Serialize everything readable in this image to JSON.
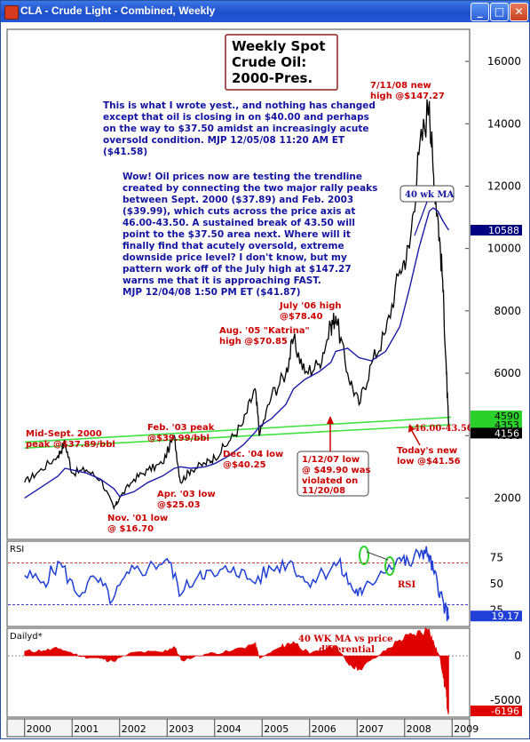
{
  "window": {
    "title": "CLA - Crude Light - Combined, Weekly",
    "buttons": [
      "minimize",
      "maximize",
      "close"
    ]
  },
  "colors": {
    "price": "#000000",
    "ma": "#1c1ca8",
    "trendline": "#3fe23f",
    "rsi": "#1f3fd6",
    "diff": "#e00000",
    "annotation_red": "#cc0000",
    "annotation_blue": "#1414a0"
  },
  "chart_data": [
    {
      "type": "line",
      "panel": "price",
      "title": "Weekly Spot Crude Oil: 2000-Pres.",
      "x_label_years": [
        "2000",
        "2001",
        "2002",
        "2003",
        "2004",
        "2005",
        "2006",
        "2007",
        "2008",
        "2009"
      ],
      "yticks": [
        "2000",
        "4000",
        "6000",
        "8000",
        "10000",
        "12000",
        "14000",
        "16000"
      ],
      "ylim": [
        700,
        17000
      ],
      "x": [
        2000.0,
        2000.3,
        2000.7,
        2000.85,
        2001.0,
        2001.3,
        2001.6,
        2001.88,
        2002.0,
        2002.3,
        2002.6,
        2002.9,
        2003.15,
        2003.28,
        2003.5,
        2003.8,
        2004.0,
        2004.3,
        2004.6,
        2004.85,
        2004.95,
        2005.2,
        2005.5,
        2005.66,
        2005.9,
        2006.2,
        2006.45,
        2006.55,
        2006.8,
        2007.04,
        2007.3,
        2007.6,
        2007.9,
        2008.1,
        2008.3,
        2008.52,
        2008.6,
        2008.7,
        2008.8,
        2008.88,
        2008.93
      ],
      "series": [
        {
          "name": "Price",
          "values": [
            2500,
            2850,
            3350,
            3789,
            2800,
            2900,
            2600,
            1670,
            2000,
            2600,
            2900,
            3100,
            3999,
            2503,
            2900,
            3100,
            3300,
            3800,
            4400,
            5500,
            4025,
            5300,
            6000,
            7085,
            6000,
            6300,
            7500,
            7840,
            6000,
            4990,
            6300,
            7300,
            9300,
            10000,
            13000,
            14727,
            12500,
            11000,
            9000,
            6000,
            4156
          ]
        },
        {
          "name": "40 wk MA",
          "values": [
            2000,
            2300,
            2700,
            2950,
            2900,
            2800,
            2600,
            2300,
            2050,
            2200,
            2500,
            2700,
            2950,
            3000,
            2950,
            3000,
            3100,
            3350,
            3700,
            4100,
            4300,
            4550,
            5000,
            5500,
            5800,
            6050,
            6350,
            6700,
            6800,
            6500,
            6400,
            6700,
            7500,
            8700,
            10000,
            11200,
            11300,
            11200,
            10900,
            10700,
            10588
          ]
        }
      ],
      "trendlines": [
        {
          "x": [
            2000.0,
            2008.98
          ],
          "y": [
            3789,
            4590
          ]
        },
        {
          "x": [
            2000.0,
            2008.98
          ],
          "y": [
            3600,
            4350
          ]
        }
      ],
      "axis_badges": [
        "10588",
        "4590",
        "4353",
        "4156"
      ],
      "trendline_label": "46.00-43.50",
      "title_box": [
        "Weekly Spot",
        "Crude Oil:",
        "2000-Pres."
      ],
      "commentary_1": [
        "This is what I wrote yest., and nothing has changed",
        "except that oil is closing in on $40.00 and perhaps",
        "on the way to $37.50 amidst an increasingly acute",
        "oversold condition. MJP 12/05/08 11:20 AM ET",
        "($41.58)"
      ],
      "commentary_2": [
        "Wow! Oil prices now are testing the trendline",
        "created by connecting the two major rally peaks",
        "between Sept. 2000 ($37.89) and Feb. 2003",
        "($39.99), which cuts across the price axis at",
        "46.00-43.50. A sustained break of 43.50 will",
        "point to the $37.50 area next. Where will it",
        "finally find that acutely oversold, extreme",
        "downside price level? I don't know, but my",
        "pattern work off of the July high at $147.27",
        "warns me that it is approaching FAST.",
        "MJP 12/04/08 1:50 PM ET ($41.87)"
      ],
      "annotations": {
        "high_0708": [
          "7/11/08 new",
          "high @$147.27"
        ],
        "ma_label": "40 wk MA",
        "july06": [
          "July '06 high",
          "@$78.40"
        ],
        "aug05": [
          "Aug. '05 \"Katrina\"",
          "high @$70.85"
        ],
        "feb03": [
          "Feb. '03 peak",
          "@$39.99/bbl"
        ],
        "sep00": [
          "Mid-Sept. 2000",
          "peak @$37.89/bbl"
        ],
        "dec04": [
          "Dec. '04 low",
          "@$40.25"
        ],
        "apr03": [
          "Apr. '03 low",
          "@$25.03"
        ],
        "nov01": [
          "Nov. '01 low",
          "@ $16.70"
        ],
        "jan07": [
          "1/12/07 low",
          "@ $49.90 was",
          "violated on",
          "11/20/08"
        ],
        "today": [
          "Today's new",
          "low @$41.56"
        ]
      }
    },
    {
      "type": "line",
      "panel": "rsi",
      "label": "RSI",
      "yticks": [
        "25",
        "50",
        "75"
      ],
      "overbought": 70,
      "oversold": 30,
      "current": "19.17",
      "side_label": "RSI",
      "x": [
        2000.0,
        2000.4,
        2000.75,
        2001.1,
        2001.5,
        2001.85,
        2002.2,
        2002.6,
        2003.0,
        2003.3,
        2003.7,
        2004.0,
        2004.4,
        2004.8,
        2005.2,
        2005.6,
        2005.9,
        2006.3,
        2006.6,
        2006.9,
        2007.1,
        2007.5,
        2007.9,
        2008.1,
        2008.35,
        2008.5,
        2008.62,
        2008.75,
        2008.85,
        2008.93
      ],
      "values": [
        58,
        52,
        70,
        40,
        55,
        34,
        60,
        65,
        74,
        40,
        62,
        57,
        66,
        52,
        64,
        72,
        52,
        60,
        70,
        45,
        40,
        62,
        75,
        68,
        82,
        78,
        60,
        42,
        25,
        19.17
      ]
    },
    {
      "type": "area",
      "panel": "diff",
      "label": "Dailyd*",
      "yticks": [
        "0",
        "-5000"
      ],
      "ylim": [
        -6800,
        3000
      ],
      "current": "-6196",
      "annotation": [
        "40 WK MA vs price",
        "differential"
      ],
      "x": [
        2000.0,
        2000.4,
        2000.75,
        2001.2,
        2001.6,
        2001.85,
        2002.3,
        2002.9,
        2003.15,
        2003.3,
        2003.8,
        2004.3,
        2004.85,
        2004.95,
        2005.4,
        2005.66,
        2006.0,
        2006.55,
        2006.8,
        2007.04,
        2007.5,
        2007.9,
        2008.2,
        2008.52,
        2008.62,
        2008.75,
        2008.82,
        2008.88,
        2008.93
      ],
      "values": [
        500,
        600,
        800,
        -100,
        -300,
        -600,
        400,
        400,
        1050,
        -500,
        200,
        450,
        1400,
        -300,
        1000,
        1600,
        200,
        1150,
        -800,
        -1500,
        200,
        1800,
        2400,
        3000,
        1300,
        -300,
        -2500,
        -4700,
        -6196
      ]
    }
  ]
}
